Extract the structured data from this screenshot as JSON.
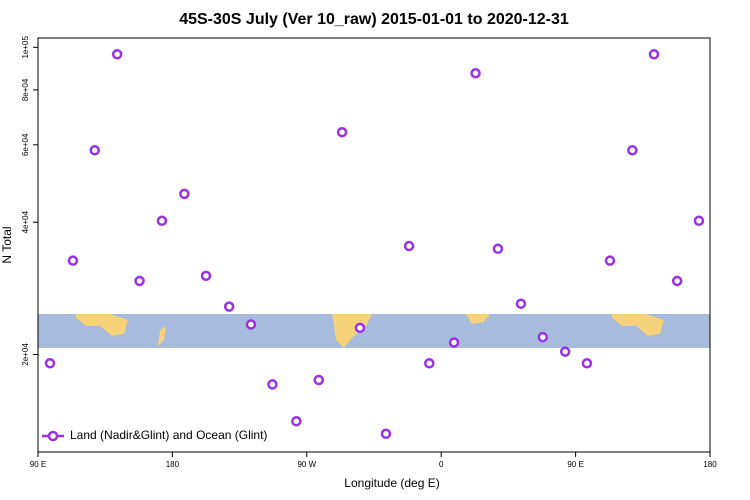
{
  "chart_data": {
    "type": "scatter",
    "title": "45S-30S July (Ver 10_raw)   2015-01-01 to 2020-12-31",
    "xlabel": "Longitude (deg E)",
    "ylabel": "N Total",
    "xlim": [
      90,
      540
    ],
    "xticks": [
      {
        "value": 90,
        "label": "90 E"
      },
      {
        "value": 180,
        "label": "180"
      },
      {
        "value": 270,
        "label": "90 W"
      },
      {
        "value": 360,
        "label": "0"
      },
      {
        "value": 450,
        "label": "90 E"
      },
      {
        "value": 540,
        "label": "180"
      }
    ],
    "ylim": [
      12000,
      105000
    ],
    "ylog": true,
    "yticks": [
      {
        "value": 20000,
        "label": "2e+04"
      },
      {
        "value": 40000,
        "label": "4e+04"
      },
      {
        "value": 60000,
        "label": "6e+04"
      },
      {
        "value": 80000,
        "label": "8e+04"
      },
      {
        "value": 100000,
        "label": "1e+05"
      }
    ],
    "legend": "bottom-left",
    "series": [
      {
        "name": "Land (Nadir&Glint) and Ocean (Glint)",
        "color": "#9b30e6",
        "x": [
          98,
          113.4,
          128,
          143,
          158,
          173,
          188,
          202.5,
          218,
          232.6,
          247,
          263,
          278,
          293.6,
          305.6,
          323,
          338.5,
          352,
          368.6,
          383,
          398,
          413.4,
          428,
          443,
          457.6,
          473,
          488,
          502.5,
          518,
          532.6
        ],
        "values": [
          19100,
          32700,
          58300,
          96400,
          29400,
          40300,
          46400,
          30200,
          25700,
          23400,
          17100,
          14100,
          17500,
          64100,
          23000,
          13200,
          35300,
          19100,
          21300,
          87300,
          34800,
          26100,
          21900,
          20300,
          19100,
          32700,
          58300,
          96400,
          29400,
          40300
        ]
      }
    ]
  }
}
